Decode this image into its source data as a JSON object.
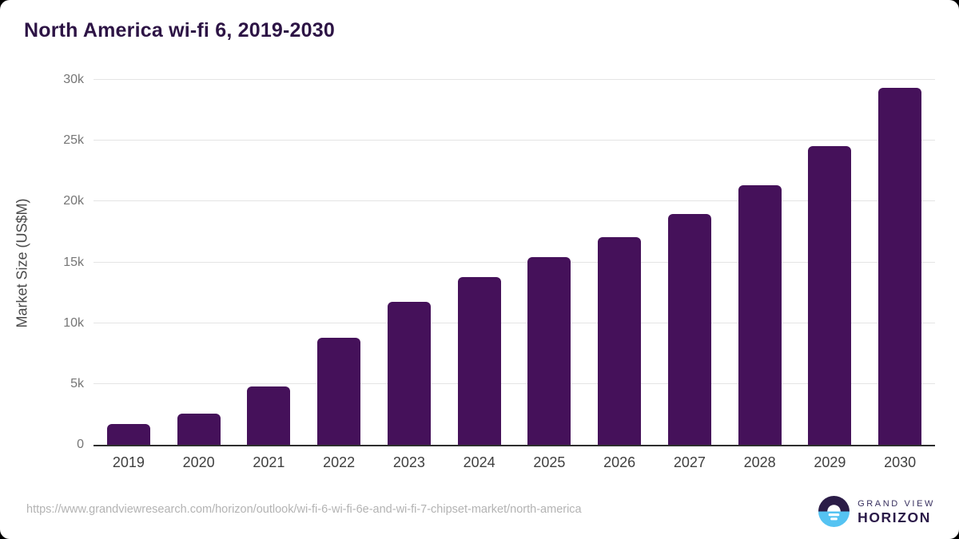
{
  "page": {
    "background_color": "#ffffff",
    "outer_background": "#000000"
  },
  "chart_data": {
    "type": "bar",
    "title": "North America wi-fi 6, 2019-2030",
    "xlabel": "",
    "ylabel": "Market Size (US$M)",
    "categories": [
      "2019",
      "2020",
      "2021",
      "2022",
      "2023",
      "2024",
      "2025",
      "2026",
      "2027",
      "2028",
      "2029",
      "2030"
    ],
    "values": [
      1700,
      2550,
      4800,
      8800,
      11750,
      13800,
      15400,
      17100,
      19000,
      21350,
      24550,
      29350
    ],
    "ylim": [
      0,
      30000
    ],
    "ytick_values": [
      0,
      5000,
      10000,
      15000,
      20000,
      25000,
      30000
    ],
    "ytick_labels": [
      "0",
      "5k",
      "10k",
      "15k",
      "20k",
      "25k",
      "30k"
    ],
    "grid": true,
    "legend": "none",
    "bar_color": "#45115a",
    "gridline_color": "#e4e4e4",
    "axis_line_color": "#2e2e2e"
  },
  "footer": {
    "source_url": "https://www.grandviewresearch.com/horizon/outlook/wi-fi-6-wi-fi-6e-and-wi-fi-7-chipset-market/north-america",
    "logo": {
      "line1": "GRAND VIEW",
      "line2": "HORIZON",
      "icon_top_color": "#2b1c47",
      "icon_bottom_color": "#55c3f2"
    }
  },
  "colors": {
    "title_text": "#2d1445",
    "ytick_text": "#767676",
    "xtick_text": "#3f3f3f",
    "url_text": "#b3b3b3"
  }
}
